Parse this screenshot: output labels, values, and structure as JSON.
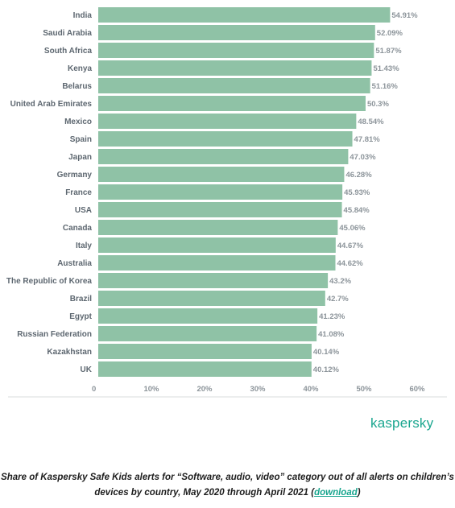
{
  "chart_data": {
    "type": "bar",
    "orientation": "horizontal",
    "categories": [
      "India",
      "Saudi Arabia",
      "South Africa",
      "Kenya",
      "Belarus",
      "United Arab Emirates",
      "Mexico",
      "Spain",
      "Japan",
      "Germany",
      "France",
      "USA",
      "Canada",
      "Italy",
      "Australia",
      "The Republic of Korea",
      "Brazil",
      "Egypt",
      "Russian Federation",
      "Kazakhstan",
      "UK"
    ],
    "values": [
      54.91,
      52.09,
      51.87,
      51.43,
      51.16,
      50.3,
      48.54,
      47.81,
      47.03,
      46.28,
      45.93,
      45.84,
      45.06,
      44.67,
      44.62,
      43.2,
      42.7,
      41.23,
      41.08,
      40.14,
      40.12
    ],
    "value_labels": [
      "54.91%",
      "52.09%",
      "51.87%",
      "51.43%",
      "51.16%",
      "50.3%",
      "48.54%",
      "47.81%",
      "47.03%",
      "46.28%",
      "45.93%",
      "45.84%",
      "45.06%",
      "44.67%",
      "44.62%",
      "43.2%",
      "42.7%",
      "41.23%",
      "41.08%",
      "40.14%",
      "40.12%"
    ],
    "xlim": [
      0,
      60
    ],
    "xticks": [
      0,
      10,
      20,
      30,
      40,
      50,
      60
    ],
    "xtick_labels": [
      "0",
      "10%",
      "20%",
      "30%",
      "40%",
      "50%",
      "60%"
    ],
    "bar_color": "#8fc2a6",
    "grid": false
  },
  "logo": {
    "text": "kaspersky",
    "color": "#1aa68f"
  },
  "caption": {
    "text": "Share of Kaspersky Safe Kids alerts for “Software, audio, video” category out of all alerts on children’s devices by country, May 2020 through April 2021 (",
    "link_text": "download",
    "close": ")"
  }
}
